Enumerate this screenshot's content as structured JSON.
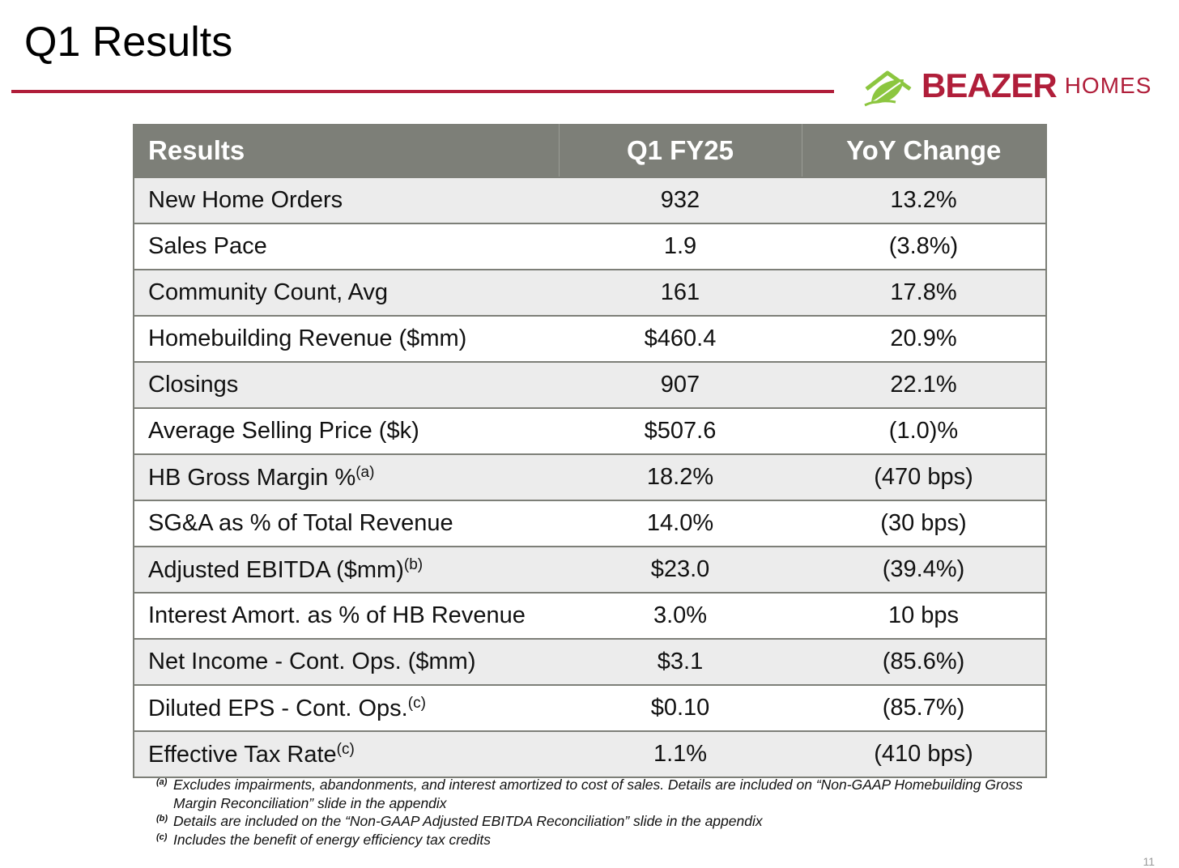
{
  "header": {
    "title": "Q1 Results",
    "rule_color": "#b01e3a"
  },
  "logo": {
    "icon": "leaf-house-icon",
    "brand": "BEAZER",
    "brand_sub": "HOMES",
    "brand_color": "#b01e3a",
    "leaf_color": "#8cc63f"
  },
  "table": {
    "header_color": "#7d7f78",
    "columns": [
      "Results",
      "Q1 FY25",
      "YoY Change"
    ],
    "rows": [
      {
        "label": "New Home Orders",
        "sup": "",
        "q1": "932",
        "yoy": "13.2%"
      },
      {
        "label": "Sales Pace",
        "sup": "",
        "q1": "1.9",
        "yoy": "(3.8%)"
      },
      {
        "label": "Community Count, Avg",
        "sup": "",
        "q1": "161",
        "yoy": "17.8%"
      },
      {
        "label": "Homebuilding Revenue ($mm)",
        "sup": "",
        "q1": "$460.4",
        "yoy": "20.9%"
      },
      {
        "label": "Closings",
        "sup": "",
        "q1": "907",
        "yoy": "22.1%"
      },
      {
        "label": "Average Selling Price ($k)",
        "sup": "",
        "q1": "$507.6",
        "yoy": "(1.0)%"
      },
      {
        "label": "HB Gross Margin %",
        "sup": "(a)",
        "q1": "18.2%",
        "yoy": "(470 bps)"
      },
      {
        "label": "SG&A as % of Total Revenue",
        "sup": "",
        "q1": "14.0%",
        "yoy": "(30 bps)"
      },
      {
        "label": "Adjusted EBITDA ($mm)",
        "sup": "(b)",
        "q1": "$23.0",
        "yoy": "(39.4%)"
      },
      {
        "label": "Interest Amort. as % of HB Revenue",
        "sup": "",
        "q1": "3.0%",
        "yoy": "10 bps"
      },
      {
        "label": "Net Income - Cont. Ops. ($mm)",
        "sup": "",
        "q1": "$3.1",
        "yoy": "(85.6%)"
      },
      {
        "label": "Diluted EPS - Cont. Ops.",
        "sup": "(c)",
        "q1": "$0.10",
        "yoy": "(85.7%)"
      },
      {
        "label": "Effective Tax Rate",
        "sup": "(c)",
        "q1": "1.1%",
        "yoy": "(410 bps)"
      }
    ]
  },
  "footnotes": [
    {
      "mark": "(a)",
      "text": "Excludes impairments, abandonments, and interest amortized to cost of sales. Details are included on “Non-GAAP Homebuilding Gross Margin Reconciliation” slide in the appendix"
    },
    {
      "mark": "(b)",
      "text": "Details are included on the “Non-GAAP Adjusted EBITDA Reconciliation” slide in the appendix"
    },
    {
      "mark": "(c)",
      "text": "Includes the benefit of energy efficiency tax credits"
    }
  ],
  "page_number": "11"
}
